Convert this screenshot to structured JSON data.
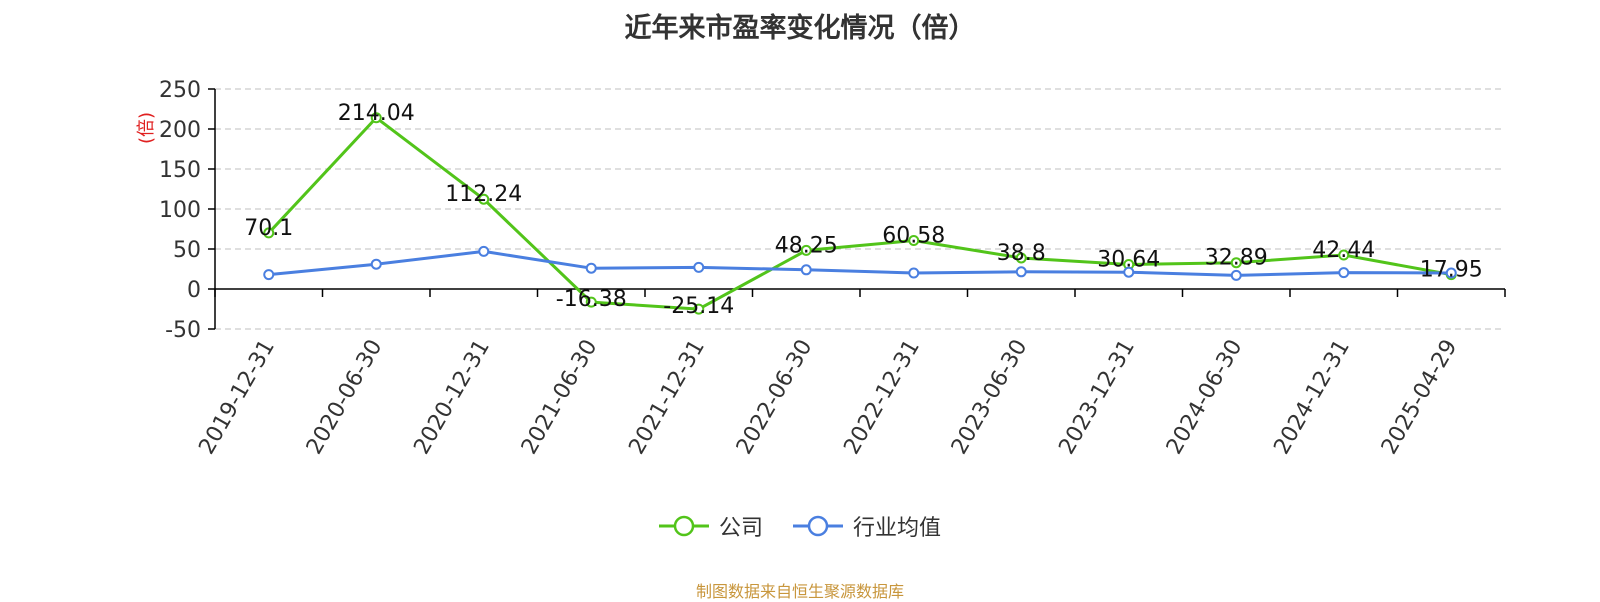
{
  "colors": {
    "company": "#52c41a",
    "industry": "#4a7fe0",
    "axis": "#000000",
    "grid": "#cccccc",
    "ylabel": "#e02020",
    "source": "#c8963c"
  },
  "legend": {
    "company_label": "公司",
    "industry_label": "行业均值",
    "placement": "bottom-center"
  },
  "source_note": "制图数据来自恒生聚源数据库",
  "chart_data": {
    "type": "line",
    "title": "近年来市盈率变化情况（倍）",
    "ylabel": "(倍)",
    "xlabel": "",
    "ylim": [
      -50,
      250
    ],
    "yticks": [
      -50,
      0,
      50,
      100,
      150,
      200,
      250
    ],
    "grid": true,
    "categories": [
      "2019-12-31",
      "2020-06-30",
      "2020-12-31",
      "2021-06-30",
      "2021-12-31",
      "2022-06-30",
      "2022-12-31",
      "2023-06-30",
      "2023-12-31",
      "2024-06-30",
      "2024-12-31",
      "2025-04-29"
    ],
    "series": [
      {
        "name": "公司",
        "values": [
          70.1,
          214.04,
          112.24,
          -16.38,
          -25.14,
          48.25,
          60.58,
          38.8,
          30.64,
          32.89,
          42.44,
          17.95
        ],
        "labels": [
          "70.1",
          "214.04",
          "112.24",
          "-16.38",
          "-25.14",
          "48.25",
          "60.58",
          "38.8",
          "30.64",
          "32.89",
          "42.44",
          "17.95"
        ]
      },
      {
        "name": "行业均值",
        "values": [
          18,
          31,
          47,
          26,
          27,
          24,
          20,
          21.5,
          21,
          17,
          20.5,
          20
        ]
      }
    ]
  }
}
